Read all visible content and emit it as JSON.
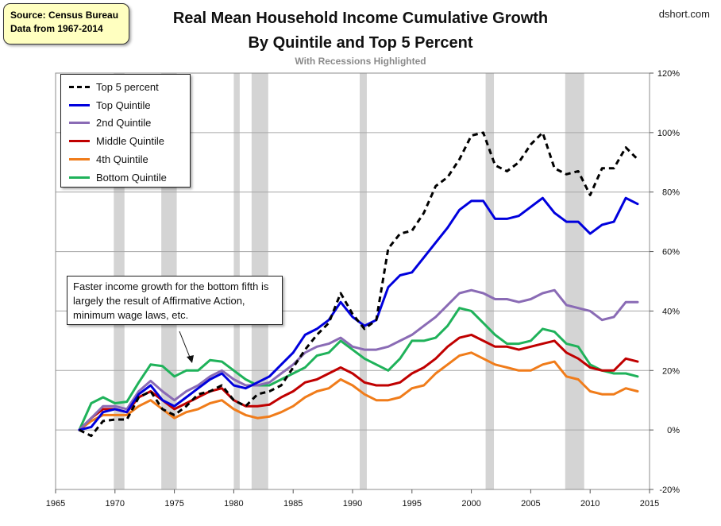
{
  "source_box": {
    "line1": "Source: Census Bureau",
    "line2": "Data from 1967-2014"
  },
  "brand": "dshort.com",
  "chart_data": {
    "type": "line",
    "title": "Real Mean Household Income Cumulative Growth",
    "title_line2": "By Quintile and Top 5 Percent",
    "subtitle": "With Recessions Highlighted",
    "xlabel": "",
    "ylabel": "",
    "xlim": [
      1965,
      2015
    ],
    "ylim": [
      -20,
      120
    ],
    "x_ticks": [
      1965,
      1970,
      1975,
      1980,
      1985,
      1990,
      1995,
      2000,
      2005,
      2010,
      2015
    ],
    "x_tick_labels": [
      "1965",
      "1970",
      "1975",
      "1980",
      "1985",
      "1990",
      "1995",
      "2000",
      "2005",
      "2010",
      "2015"
    ],
    "y_ticks": [
      -20,
      0,
      20,
      40,
      60,
      80,
      100,
      120
    ],
    "y_tick_labels": [
      "-20%",
      "0%",
      "20%",
      "40%",
      "60%",
      "80%",
      "100%",
      "120%"
    ],
    "y_axis_side": "right",
    "grid": "horizontal",
    "legend_position": "top-left",
    "recessions": [
      [
        1969.9,
        1970.8
      ],
      [
        1973.9,
        1975.2
      ],
      [
        1980.0,
        1980.5
      ],
      [
        1981.5,
        1982.9
      ],
      [
        1990.6,
        1991.2
      ],
      [
        2001.2,
        2001.9
      ],
      [
        2007.9,
        2009.5
      ]
    ],
    "x": [
      1967,
      1968,
      1969,
      1970,
      1971,
      1972,
      1973,
      1974,
      1975,
      1976,
      1977,
      1978,
      1979,
      1980,
      1981,
      1982,
      1983,
      1984,
      1985,
      1986,
      1987,
      1988,
      1989,
      1990,
      1991,
      1992,
      1993,
      1994,
      1995,
      1996,
      1997,
      1998,
      1999,
      2000,
      2001,
      2002,
      2003,
      2004,
      2005,
      2006,
      2007,
      2008,
      2009,
      2010,
      2011,
      2012,
      2013,
      2014
    ],
    "series": [
      {
        "name": "Top 5 percent",
        "color": "#000000",
        "dashed": true,
        "values": [
          0,
          -2,
          3,
          3.5,
          3.5,
          11,
          13,
          7,
          5,
          8,
          12,
          13,
          15,
          10,
          8,
          12,
          13,
          15,
          21,
          27,
          32,
          36,
          46,
          39,
          34,
          37,
          61,
          66,
          67,
          73,
          82,
          85,
          91,
          99,
          100,
          89,
          87,
          90,
          96,
          100,
          88,
          86,
          87,
          79,
          88,
          88,
          95,
          91
        ]
      },
      {
        "name": "Top Quintile",
        "color": "#0000dd",
        "dashed": false,
        "values": [
          0,
          1,
          6,
          7,
          6,
          12,
          15,
          10,
          8,
          11,
          14,
          17,
          19,
          15,
          14,
          16,
          18,
          22,
          26,
          32,
          34,
          37,
          43,
          38,
          35,
          37,
          48,
          52,
          53,
          58,
          63,
          68,
          74,
          77,
          77,
          71,
          71,
          72,
          75,
          78,
          73,
          70,
          70,
          66,
          69,
          70,
          78,
          76
        ]
      },
      {
        "name": "2nd Quintile",
        "color": "#8a6bb5",
        "dashed": false,
        "values": [
          0,
          4,
          8,
          8,
          7,
          13,
          16.5,
          13,
          10,
          13,
          15,
          18,
          20,
          17,
          15,
          15,
          16,
          19,
          22,
          26,
          28,
          29,
          31,
          28,
          27,
          27,
          28,
          30,
          32,
          35,
          38,
          42,
          46,
          47,
          46,
          44,
          44,
          43,
          44,
          46,
          47,
          42,
          41,
          40,
          37,
          38,
          43,
          43
        ]
      },
      {
        "name": "Middle Quintile",
        "color": "#c00000",
        "dashed": false,
        "values": [
          0,
          4,
          7,
          7,
          6,
          11,
          13,
          10,
          7,
          9,
          11,
          13,
          14,
          10,
          8,
          8,
          8.5,
          11,
          13,
          16,
          17,
          19,
          21,
          19,
          16,
          15,
          15,
          16,
          19,
          21,
          24,
          28,
          31,
          32,
          30,
          28,
          28,
          27,
          28,
          29,
          30,
          26,
          24,
          21,
          20,
          20,
          24,
          23
        ]
      },
      {
        "name": "4th Quintile",
        "color": "#f07c1a",
        "dashed": false,
        "values": [
          0,
          3,
          5,
          5,
          5,
          8,
          10,
          7,
          4,
          6,
          7,
          9,
          10,
          7,
          5,
          4,
          4.5,
          6,
          8,
          11,
          13,
          14,
          17,
          15,
          12,
          10,
          10,
          11,
          14,
          15,
          19,
          22,
          25,
          26,
          24,
          22,
          21,
          20,
          20,
          22,
          23,
          18,
          17,
          13,
          12,
          12,
          14,
          13
        ]
      },
      {
        "name": "Bottom Quintile",
        "color": "#1fb25a",
        "dashed": false,
        "values": [
          0,
          9,
          11,
          9,
          9.5,
          16,
          22,
          21.5,
          18,
          20,
          20,
          23.5,
          23,
          20,
          17,
          15,
          15,
          17,
          19,
          21,
          25,
          26,
          30,
          27,
          24,
          22,
          20,
          24,
          30,
          30,
          31,
          35,
          41,
          40,
          36,
          32,
          29,
          29,
          30,
          34,
          33,
          29,
          28,
          22,
          20,
          19,
          19,
          18
        ]
      }
    ],
    "annotation": "Faster income growth  for the bottom fifth is largely the result of Affirmative Action, minimum  wage laws, etc."
  }
}
